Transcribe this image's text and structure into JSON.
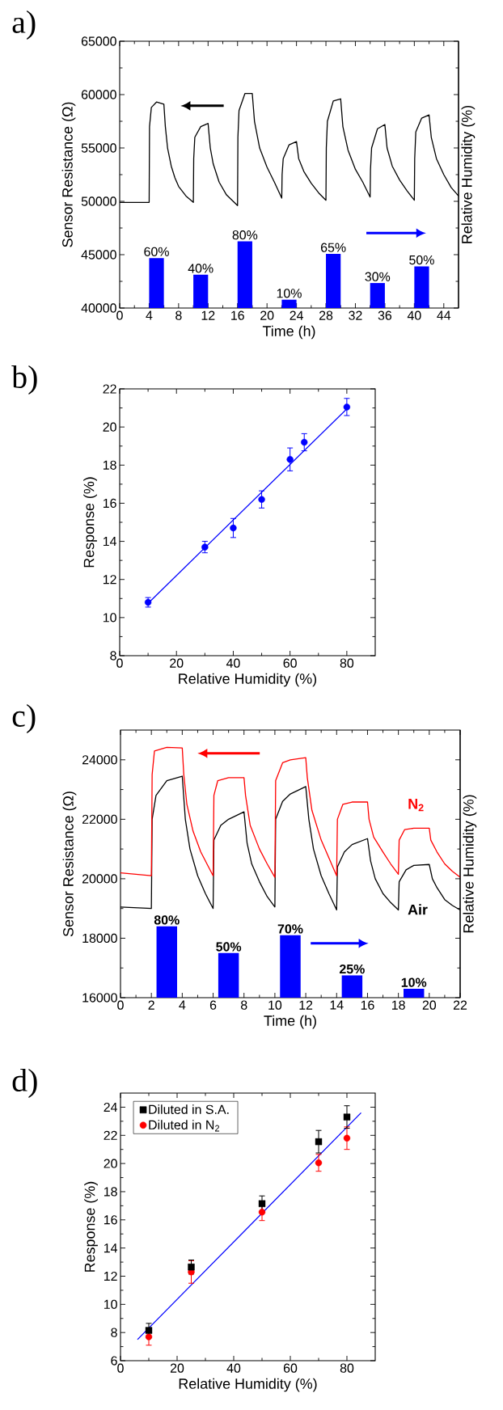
{
  "chart_data": [
    {
      "type": "line",
      "title": "a)",
      "xlabel": "Time (h)",
      "ylabel": "Sensor Resistance (Ω)",
      "y2label": "Relative Humidity (%)",
      "xlim": [
        0,
        46
      ],
      "xticks": [
        0,
        4,
        8,
        12,
        16,
        20,
        24,
        28,
        32,
        36,
        40,
        44
      ],
      "ylim": [
        40000,
        65000
      ],
      "yticks": [
        40000,
        45000,
        50000,
        55000,
        60000,
        65000
      ],
      "y2lim": [
        0,
        320
      ],
      "tick_labels": "xy",
      "series": [
        {
          "color": "#000000",
          "x": [
            0,
            4,
            4.05,
            4.3,
            5,
            6,
            6.2,
            6.5,
            7,
            7.5,
            8,
            9,
            10,
            10.05,
            10.2,
            11,
            12,
            12.3,
            12.7,
            13.5,
            14.5,
            16,
            16.05,
            16.2,
            17,
            18,
            18.3,
            19,
            20,
            21,
            22,
            22.05,
            22.2,
            23,
            24,
            24.3,
            25,
            26,
            27,
            28,
            28.05,
            28.2,
            29,
            30,
            30.3,
            31,
            32,
            33,
            34,
            34.05,
            34.2,
            35,
            36,
            36.3,
            37,
            38,
            39,
            40,
            40.05,
            40.2,
            41,
            42,
            42.3,
            43,
            44,
            45,
            46
          ],
          "values": [
            49900,
            49900,
            57000,
            58800,
            59300,
            59100,
            57000,
            55000,
            53300,
            52200,
            51400,
            50500,
            49900,
            54000,
            56000,
            57000,
            57300,
            55000,
            53500,
            51800,
            50600,
            49600,
            56000,
            58500,
            60100,
            60100,
            57500,
            55000,
            53200,
            51800,
            50300,
            52500,
            54000,
            55300,
            55600,
            54000,
            52800,
            51700,
            50800,
            50100,
            55000,
            57500,
            59400,
            59600,
            57000,
            54800,
            53000,
            51800,
            50400,
            53000,
            55000,
            56800,
            57200,
            55000,
            53300,
            52000,
            51000,
            50100,
            54000,
            56500,
            57800,
            58100,
            56000,
            54000,
            52500,
            51300,
            50500
          ]
        },
        {
          "type": "bar",
          "axis": "y2",
          "color": "#0000ff",
          "x": [
            5,
            11,
            17,
            23,
            29,
            35,
            41
          ],
          "values": [
            60,
            40,
            80,
            10,
            65,
            30,
            50
          ],
          "value_labels": [
            "60%",
            "40%",
            "80%",
            "10%",
            "65%",
            "30%",
            "50%"
          ]
        }
      ]
    },
    {
      "type": "scatter",
      "title": "b)",
      "xlabel": "Relative Humidity (%)",
      "ylabel": "Response (%)",
      "xlim": [
        0,
        90
      ],
      "xticks": [
        0,
        20,
        40,
        60,
        80
      ],
      "ylim": [
        8,
        22
      ],
      "yticks": [
        8,
        10,
        12,
        14,
        16,
        18,
        20,
        22
      ],
      "series": [
        {
          "marker": "circle",
          "color": "#0000ff",
          "x": [
            10,
            30,
            40,
            50,
            60,
            65,
            80
          ],
          "values": [
            10.8,
            13.7,
            14.7,
            16.2,
            18.3,
            19.2,
            21.05
          ],
          "errors": [
            0.25,
            0.3,
            0.5,
            0.45,
            0.6,
            0.45,
            0.45
          ]
        },
        {
          "type": "line",
          "marker": "none",
          "color": "#0000ff",
          "x": [
            10,
            80
          ],
          "values": [
            10.75,
            20.95
          ]
        }
      ]
    },
    {
      "type": "line",
      "title": "c)",
      "xlabel": "Time (h)",
      "ylabel": "Sensor Resistance (Ω)",
      "y2label": "Relative Humidity (%)",
      "xlim": [
        0,
        22
      ],
      "xticks": [
        0,
        2,
        4,
        6,
        8,
        10,
        12,
        14,
        16,
        18,
        20,
        22
      ],
      "ylim": [
        16000,
        25000
      ],
      "yticks": [
        16000,
        18000,
        20000,
        22000,
        24000
      ],
      "y2lim": [
        0,
        300
      ],
      "tick_labels": "xy",
      "series": [
        {
          "name": "N$_{2}$",
          "color": "#ff0000",
          "x": [
            0,
            2,
            2.05,
            2.2,
            3,
            4,
            4.1,
            4.3,
            4.7,
            5.2,
            6,
            6.05,
            6.3,
            7,
            8,
            8.1,
            8.4,
            9,
            9.5,
            10,
            10.05,
            10.5,
            11,
            12,
            12.1,
            12.4,
            13,
            13.5,
            14,
            14.05,
            14.4,
            15,
            16,
            16.1,
            16.4,
            17,
            17.5,
            18,
            18.05,
            18.4,
            19,
            20,
            20.1,
            20.5,
            21,
            21.5,
            22
          ],
          "values": [
            20200,
            20100,
            23500,
            24300,
            24420,
            24400,
            23500,
            22500,
            21600,
            20900,
            20100,
            22800,
            23300,
            23400,
            23400,
            22800,
            21800,
            21000,
            20500,
            20050,
            23300,
            23900,
            24000,
            24070,
            23400,
            22300,
            21300,
            20700,
            20100,
            22000,
            22500,
            22580,
            22580,
            22000,
            21400,
            20900,
            20500,
            20150,
            21300,
            21650,
            21700,
            21700,
            21300,
            20900,
            20500,
            20250,
            20050
          ]
        },
        {
          "name": "Air",
          "color": "#000000",
          "x": [
            0,
            2,
            2.05,
            2.3,
            3,
            4,
            4.2,
            4.5,
            5,
            5.5,
            6,
            6.05,
            6.5,
            7,
            8,
            8.2,
            8.5,
            9,
            9.5,
            10,
            10.05,
            10.5,
            11,
            12,
            12.2,
            12.5,
            13,
            13.5,
            14,
            14.05,
            14.5,
            15,
            16,
            16.2,
            16.5,
            17,
            17.5,
            18,
            18.05,
            18.5,
            19,
            20,
            20.2,
            20.5,
            21,
            21.5,
            22
          ],
          "values": [
            19050,
            19000,
            22000,
            22800,
            23300,
            23450,
            22000,
            21000,
            20100,
            19500,
            19000,
            21300,
            21800,
            22000,
            22250,
            21200,
            20500,
            19900,
            19400,
            19050,
            22000,
            22600,
            22850,
            23100,
            22000,
            21000,
            20100,
            19500,
            18950,
            20400,
            20900,
            21150,
            21350,
            20600,
            20000,
            19500,
            19200,
            18950,
            19900,
            20300,
            20450,
            20480,
            20000,
            19700,
            19300,
            19100,
            18950
          ]
        },
        {
          "type": "bar",
          "axis": "y2",
          "color": "#0000ff",
          "x": [
            3,
            7,
            11,
            15,
            19
          ],
          "values": [
            80,
            50,
            70,
            25,
            10
          ],
          "value_labels": [
            "80%",
            "50%",
            "70%",
            "25%",
            "10%"
          ]
        }
      ]
    },
    {
      "type": "scatter",
      "title": "d)",
      "xlabel": "Relative Humidity (%)",
      "ylabel": "Response (%)",
      "xlim": [
        0,
        90
      ],
      "xticks": [
        0,
        20,
        40,
        60,
        80
      ],
      "ylim": [
        6,
        25
      ],
      "yticks": [
        6,
        8,
        10,
        12,
        14,
        16,
        18,
        20,
        22,
        24
      ],
      "legend": "top left",
      "series": [
        {
          "name": "Diluted in S.A.",
          "marker": "square",
          "color": "#000000",
          "x": [
            10,
            25,
            50,
            70,
            80
          ],
          "values": [
            8.15,
            12.65,
            17.15,
            21.55,
            23.3
          ],
          "errors": [
            0.5,
            0.5,
            0.55,
            0.8,
            0.8
          ]
        },
        {
          "name": "Diluted in N$_{2}$",
          "marker": "circle",
          "color": "#ff0000",
          "x": [
            10,
            25,
            50,
            70,
            80
          ],
          "values": [
            7.7,
            12.3,
            16.55,
            20.05,
            21.8
          ],
          "errors": [
            0.6,
            0.8,
            0.6,
            0.6,
            0.8
          ]
        },
        {
          "type": "line",
          "marker": "none",
          "color": "#0000ff",
          "x": [
            6,
            85
          ],
          "values": [
            7.5,
            23.6
          ]
        }
      ]
    }
  ]
}
